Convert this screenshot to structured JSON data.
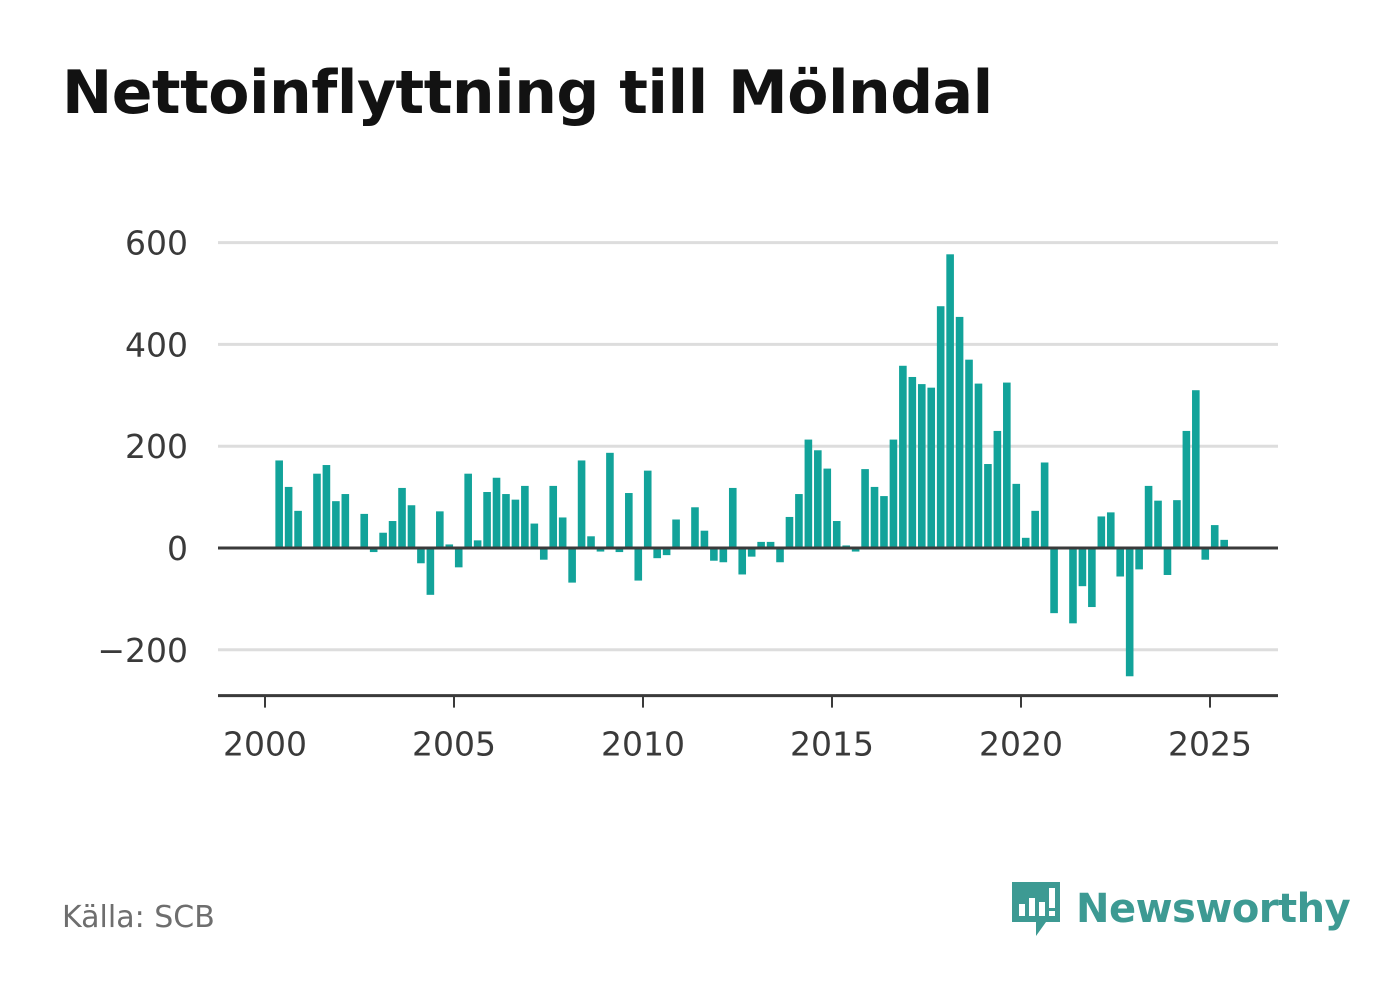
{
  "title": "Nettoinflyttning till Mölndal",
  "source": "Källa: SCB",
  "brand": {
    "name": "Newsworthy",
    "icon": "newsworthy-logo-icon",
    "color": "#3d9a93"
  },
  "colors": {
    "bar": "#12a39a",
    "grid": "#dddddd",
    "axis": "#3a3a3a",
    "tick_text": "#3a3a3a"
  },
  "chart_data": {
    "type": "bar",
    "title": "Nettoinflyttning till Mölndal",
    "xlabel": "",
    "ylabel": "",
    "ylim": [
      -290,
      600
    ],
    "xlim": [
      1999.74,
      2026.8
    ],
    "yticks": [
      600,
      400,
      200,
      0,
      -200
    ],
    "ytick_labels": [
      "600",
      "400",
      "200",
      "0",
      "−200"
    ],
    "xticks": [
      2000,
      2005,
      2010,
      2015,
      2020,
      2025
    ],
    "xtick_labels": [
      "2000",
      "2005",
      "2010",
      "2015",
      "2020",
      "2025"
    ],
    "grid": true,
    "legend": "none",
    "x": [
      2000.375,
      2000.625,
      2000.875,
      2001.125,
      2001.375,
      2001.625,
      2001.875,
      2002.125,
      2002.375,
      2002.625,
      2002.875,
      2003.125,
      2003.375,
      2003.625,
      2003.875,
      2004.125,
      2004.375,
      2004.625,
      2004.875,
      2005.125,
      2005.375,
      2005.625,
      2005.875,
      2006.125,
      2006.375,
      2006.625,
      2006.875,
      2007.125,
      2007.375,
      2007.625,
      2007.875,
      2008.125,
      2008.375,
      2008.625,
      2008.875,
      2009.125,
      2009.375,
      2009.625,
      2009.875,
      2010.125,
      2010.375,
      2010.625,
      2010.875,
      2011.125,
      2011.375,
      2011.625,
      2011.875,
      2012.125,
      2012.375,
      2012.625,
      2012.875,
      2013.125,
      2013.375,
      2013.625,
      2013.875,
      2014.125,
      2014.375,
      2014.625,
      2014.875,
      2015.125,
      2015.375,
      2015.625,
      2015.875,
      2016.125,
      2016.375,
      2016.625,
      2016.875,
      2017.125,
      2017.375,
      2017.625,
      2017.875,
      2018.125,
      2018.375,
      2018.625,
      2018.875,
      2019.125,
      2019.375,
      2019.625,
      2019.875,
      2020.125,
      2020.375,
      2020.625,
      2020.875,
      2021.125,
      2021.375,
      2021.625,
      2021.875,
      2022.125,
      2022.375,
      2022.625,
      2022.875,
      2023.125,
      2023.375,
      2023.625,
      2023.875,
      2024.125,
      2024.375,
      2024.625,
      2024.875,
      2025.125,
      2025.375
    ],
    "values": [
      172,
      120,
      73,
      0,
      146,
      163,
      92,
      106,
      0,
      67,
      -8,
      30,
      53,
      118,
      84,
      -30,
      -92,
      72,
      7,
      -38,
      146,
      15,
      110,
      138,
      106,
      95,
      122,
      48,
      -23,
      122,
      60,
      -68,
      172,
      23,
      -7,
      187,
      -8,
      108,
      -64,
      152,
      -20,
      -14,
      56,
      0,
      80,
      34,
      -25,
      -28,
      118,
      -52,
      -17,
      12,
      12,
      -28,
      61,
      106,
      213,
      192,
      156,
      53,
      5,
      -7,
      155,
      120,
      102,
      213,
      358,
      336,
      322,
      315,
      475,
      577,
      454,
      370,
      323,
      165,
      230,
      325,
      126,
      20,
      73,
      168,
      -128,
      0,
      -148,
      -75,
      -116,
      62,
      70,
      -56,
      -252,
      -42,
      122,
      93,
      -53,
      94,
      230,
      310,
      -23,
      45,
      16
    ]
  }
}
